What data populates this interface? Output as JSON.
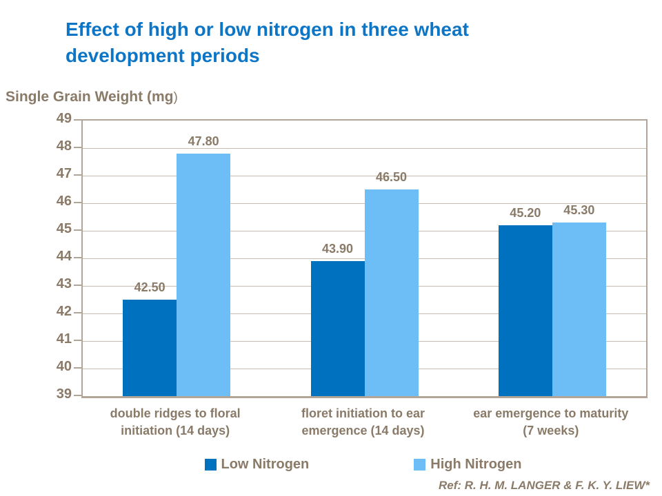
{
  "title": "Effect of high or low nitrogen in three wheat development periods",
  "y_axis": {
    "title_bold": "Single Grain Weight (mg",
    "title_close": ")",
    "min": 39,
    "max": 49,
    "tick_step": 1
  },
  "chart_data": {
    "type": "bar",
    "title": "Effect of high or low nitrogen in three wheat development periods",
    "ylabel": "Single Grain Weight (mg)",
    "xlabel": "",
    "ylim": [
      39,
      49
    ],
    "grid": "horizontal",
    "legend_position": "bottom",
    "categories": [
      "double ridges to floral initiation (14 days)",
      "floret initiation to ear emergence (14 days)",
      "ear emergence to maturity (7 weeks)"
    ],
    "series": [
      {
        "name": "Low Nitrogen",
        "color": "#0071BE",
        "values": [
          42.5,
          43.9,
          45.2
        ],
        "labels": [
          "42.50",
          "43.90",
          "45.20"
        ]
      },
      {
        "name": "High Nitrogen",
        "color": "#6DBEF7",
        "values": [
          47.8,
          46.5,
          45.3
        ],
        "labels": [
          "47.80",
          "46.50",
          "45.30"
        ]
      }
    ]
  },
  "legend": {
    "items": [
      {
        "label": "Low Nitrogen",
        "color": "#0071BE"
      },
      {
        "label": "High Nitrogen",
        "color": "#6DBEF7"
      }
    ]
  },
  "reference": "Ref: R. H. M. LANGER & F. K. Y. LIEW*",
  "colors": {
    "title": "#0C75C6",
    "text": "#8A7A68",
    "axis_line": "#B2A496",
    "gridline": "#C7BDB1",
    "background": "#FFFFFF"
  }
}
